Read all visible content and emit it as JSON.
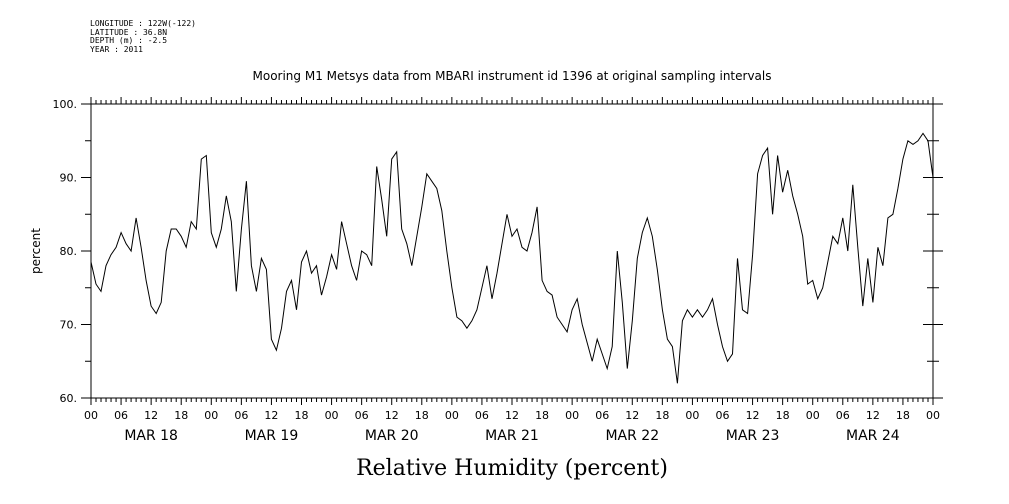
{
  "header": {
    "lines": [
      "LONGITUDE : 122W(-122)",
      "LATITUDE : 36.8N",
      "DEPTH (m) : -2.5",
      "YEAR : 2011"
    ]
  },
  "chart_data": {
    "type": "line",
    "title": "Mooring M1 Metsys data from MBARI instrument id 1396 at original sampling intervals",
    "xlabel": "Relative Humidity (percent)",
    "ylabel": "percent",
    "ylim": [
      60,
      100
    ],
    "yticks": [
      "60.",
      "70.",
      "80.",
      "90.",
      "100."
    ],
    "xlim": [
      "2011-03-18T00:00",
      "2011-03-25T00:00"
    ],
    "x_hour_ticks": [
      "00",
      "06",
      "12",
      "18",
      "00",
      "06",
      "12",
      "18",
      "00",
      "06",
      "12",
      "18",
      "00",
      "06",
      "12",
      "18",
      "00",
      "06",
      "12",
      "18",
      "00",
      "06",
      "12",
      "18",
      "00",
      "06",
      "12",
      "18",
      "00"
    ],
    "x_day_labels": [
      "MAR 18",
      "MAR 19",
      "MAR 20",
      "MAR 21",
      "MAR 22",
      "MAR 23",
      "MAR 24"
    ],
    "grid": false,
    "series": [
      {
        "hours": [
          0,
          1,
          2,
          3,
          4,
          5,
          6,
          7,
          8,
          9,
          10,
          11,
          12,
          13,
          14,
          15,
          16,
          17,
          18,
          19,
          20,
          21,
          22,
          23,
          24,
          25,
          26,
          27,
          28,
          29,
          30,
          31,
          32,
          33,
          34,
          35,
          36,
          37,
          38,
          39,
          40,
          41,
          42,
          43,
          44,
          45,
          46,
          47,
          48,
          49,
          50,
          51,
          52,
          53,
          54,
          55,
          56,
          57,
          58,
          59,
          60,
          61,
          62,
          63,
          64,
          65,
          66,
          67,
          68,
          69,
          70,
          71,
          72,
          73,
          74,
          75,
          76,
          77,
          78,
          79,
          80,
          81,
          82,
          83,
          84,
          85,
          86,
          87,
          88,
          89,
          90,
          91,
          92,
          93,
          94,
          95,
          96,
          97,
          98,
          99,
          100,
          101,
          102,
          103,
          104,
          105,
          106,
          107,
          108,
          109,
          110,
          111,
          112,
          113,
          114,
          115,
          116,
          117,
          118,
          119,
          120,
          121,
          122,
          123,
          124,
          125,
          126,
          127,
          128,
          129,
          130,
          131,
          132,
          133,
          134,
          135,
          136,
          137,
          138,
          139,
          140,
          141,
          142,
          143,
          144,
          145,
          146,
          147,
          148,
          149,
          150,
          151,
          152,
          153,
          154,
          155,
          156,
          157,
          158,
          159,
          160,
          161,
          162,
          163,
          164,
          165,
          166,
          167,
          168
        ],
        "values": [
          78.5,
          75.5,
          74.5,
          78.0,
          79.5,
          80.5,
          82.5,
          81.0,
          80.0,
          84.5,
          80.5,
          76.0,
          72.5,
          71.5,
          73.0,
          80.0,
          83.0,
          83.0,
          82.0,
          80.5,
          84.0,
          83.0,
          92.5,
          93.0,
          82.5,
          80.5,
          83.0,
          87.5,
          84.0,
          74.5,
          83.0,
          89.5,
          78.0,
          74.5,
          79.0,
          77.5,
          68.0,
          66.5,
          69.5,
          74.5,
          76.0,
          72.0,
          78.5,
          80.0,
          77.0,
          78.0,
          74.0,
          76.5,
          79.5,
          77.5,
          84.0,
          81.0,
          78.0,
          76.0,
          80.0,
          79.5,
          78.0,
          91.5,
          87.0,
          82.0,
          92.5,
          93.5,
          83.0,
          81.0,
          78.0,
          82.0,
          86.0,
          90.5,
          89.5,
          88.5,
          85.5,
          80.0,
          75.0,
          71.0,
          70.5,
          69.5,
          70.5,
          72.0,
          75.0,
          78.0,
          73.5,
          77.0,
          81.0,
          85.0,
          82.0,
          83.0,
          80.5,
          80.0,
          82.5,
          86.0,
          76.0,
          74.5,
          74.0,
          71.0,
          70.0,
          69.0,
          72.0,
          73.5,
          70.0,
          67.5,
          65.0,
          68.0,
          66.0,
          64.0,
          67.0,
          80.0,
          73.0,
          64.0,
          70.5,
          79.0,
          82.5,
          84.5,
          82.0,
          77.5,
          72.0,
          68.0,
          67.0,
          62.0,
          70.5,
          72.0,
          71.0,
          72.0,
          71.0,
          72.0,
          73.5,
          70.0,
          67.0,
          65.0,
          66.0,
          79.0,
          72.0,
          71.5,
          79.5,
          90.5,
          93.0,
          94.0,
          85.0,
          93.0,
          88.0,
          91.0,
          87.5,
          85.0,
          82.0,
          75.5,
          76.0,
          73.5,
          75.0,
          78.5,
          82.0,
          81.0,
          84.5,
          80.0,
          89.0,
          80.5,
          72.5,
          79.0,
          73.0,
          80.5,
          78.0,
          84.5,
          85.0,
          88.5,
          92.5,
          95.0,
          94.5,
          95.0,
          96.0,
          95.0,
          90.0
        ]
      }
    ]
  }
}
